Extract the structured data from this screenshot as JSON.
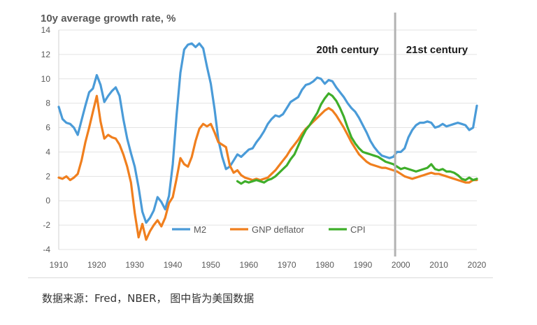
{
  "chart_data": {
    "type": "line",
    "title": "10y average growth rate, %",
    "xlabel": "",
    "ylabel": "",
    "xlim": [
      1910,
      2020
    ],
    "ylim": [
      -4,
      14
    ],
    "x_ticks": [
      1910,
      1920,
      1930,
      1940,
      1950,
      1960,
      1970,
      1980,
      1990,
      2000,
      2010,
      2020
    ],
    "y_ticks": [
      -4,
      -2,
      0,
      2,
      4,
      6,
      8,
      10,
      12,
      14
    ],
    "grid": "horizontal",
    "legend_position": "bottom-center",
    "annotations": [
      {
        "text": "20th century",
        "x": 1986
      },
      {
        "text": "21st century",
        "x": 2009.5
      }
    ],
    "divider_x": 1998.5,
    "series": [
      {
        "name": "M2",
        "color": "#4a9bd8",
        "points": [
          [
            1910,
            7.7
          ],
          [
            1911,
            6.7
          ],
          [
            1912,
            6.4
          ],
          [
            1913,
            6.3
          ],
          [
            1914,
            6.0
          ],
          [
            1915,
            5.4
          ],
          [
            1916,
            6.6
          ],
          [
            1917,
            7.8
          ],
          [
            1918,
            8.9
          ],
          [
            1919,
            9.2
          ],
          [
            1920,
            10.3
          ],
          [
            1921,
            9.5
          ],
          [
            1922,
            8.1
          ],
          [
            1923,
            8.6
          ],
          [
            1924,
            9.0
          ],
          [
            1925,
            9.3
          ],
          [
            1926,
            8.6
          ],
          [
            1927,
            6.7
          ],
          [
            1928,
            5.1
          ],
          [
            1929,
            3.9
          ],
          [
            1930,
            2.8
          ],
          [
            1931,
            1.1
          ],
          [
            1932,
            -0.9
          ],
          [
            1933,
            -1.8
          ],
          [
            1934,
            -1.4
          ],
          [
            1935,
            -0.8
          ],
          [
            1936,
            0.3
          ],
          [
            1937,
            -0.1
          ],
          [
            1938,
            -0.7
          ],
          [
            1939,
            0.4
          ],
          [
            1940,
            3.0
          ],
          [
            1941,
            7.0
          ],
          [
            1942,
            10.5
          ],
          [
            1943,
            12.4
          ],
          [
            1944,
            12.8
          ],
          [
            1945,
            12.9
          ],
          [
            1946,
            12.6
          ],
          [
            1947,
            12.9
          ],
          [
            1948,
            12.5
          ],
          [
            1949,
            11.0
          ],
          [
            1950,
            9.6
          ],
          [
            1951,
            7.5
          ],
          [
            1952,
            5.0
          ],
          [
            1953,
            3.6
          ],
          [
            1954,
            2.6
          ],
          [
            1955,
            2.8
          ],
          [
            1956,
            3.3
          ],
          [
            1957,
            3.8
          ],
          [
            1958,
            3.6
          ],
          [
            1959,
            3.9
          ],
          [
            1960,
            4.2
          ],
          [
            1961,
            4.3
          ],
          [
            1962,
            4.8
          ],
          [
            1963,
            5.2
          ],
          [
            1964,
            5.7
          ],
          [
            1965,
            6.3
          ],
          [
            1966,
            6.7
          ],
          [
            1967,
            7.0
          ],
          [
            1968,
            6.9
          ],
          [
            1969,
            7.1
          ],
          [
            1970,
            7.6
          ],
          [
            1971,
            8.1
          ],
          [
            1972,
            8.3
          ],
          [
            1973,
            8.5
          ],
          [
            1974,
            9.1
          ],
          [
            1975,
            9.5
          ],
          [
            1976,
            9.6
          ],
          [
            1977,
            9.8
          ],
          [
            1978,
            10.1
          ],
          [
            1979,
            10.0
          ],
          [
            1980,
            9.6
          ],
          [
            1981,
            9.9
          ],
          [
            1982,
            9.8
          ],
          [
            1983,
            9.3
          ],
          [
            1984,
            8.9
          ],
          [
            1985,
            8.5
          ],
          [
            1986,
            8.0
          ],
          [
            1987,
            7.6
          ],
          [
            1988,
            7.3
          ],
          [
            1989,
            6.8
          ],
          [
            1990,
            6.2
          ],
          [
            1991,
            5.6
          ],
          [
            1992,
            4.9
          ],
          [
            1993,
            4.4
          ],
          [
            1994,
            4.0
          ],
          [
            1995,
            3.7
          ],
          [
            1996,
            3.6
          ],
          [
            1997,
            3.5
          ],
          [
            1998,
            3.6
          ],
          [
            1999,
            4.0
          ],
          [
            2000,
            4.0
          ],
          [
            2001,
            4.3
          ],
          [
            2002,
            5.2
          ],
          [
            2003,
            5.8
          ],
          [
            2004,
            6.2
          ],
          [
            2005,
            6.4
          ],
          [
            2006,
            6.4
          ],
          [
            2007,
            6.5
          ],
          [
            2008,
            6.4
          ],
          [
            2009,
            6.0
          ],
          [
            2010,
            6.1
          ],
          [
            2011,
            6.3
          ],
          [
            2012,
            6.1
          ],
          [
            2013,
            6.2
          ],
          [
            2014,
            6.3
          ],
          [
            2015,
            6.4
          ],
          [
            2016,
            6.3
          ],
          [
            2017,
            6.2
          ],
          [
            2018,
            5.8
          ],
          [
            2019,
            6.0
          ],
          [
            2020,
            7.8
          ]
        ]
      },
      {
        "name": "GNP deflator",
        "color": "#f07f1e",
        "points": [
          [
            1910,
            1.9
          ],
          [
            1911,
            1.8
          ],
          [
            1912,
            2.0
          ],
          [
            1913,
            1.7
          ],
          [
            1914,
            1.9
          ],
          [
            1915,
            2.2
          ],
          [
            1916,
            3.3
          ],
          [
            1917,
            4.8
          ],
          [
            1918,
            6.0
          ],
          [
            1919,
            7.3
          ],
          [
            1920,
            8.6
          ],
          [
            1921,
            6.5
          ],
          [
            1922,
            5.1
          ],
          [
            1923,
            5.4
          ],
          [
            1924,
            5.2
          ],
          [
            1925,
            5.1
          ],
          [
            1926,
            4.6
          ],
          [
            1927,
            3.8
          ],
          [
            1928,
            2.8
          ],
          [
            1929,
            1.5
          ],
          [
            1930,
            -1.0
          ],
          [
            1931,
            -3.0
          ],
          [
            1932,
            -1.9
          ],
          [
            1933,
            -3.2
          ],
          [
            1934,
            -2.5
          ],
          [
            1935,
            -2.0
          ],
          [
            1936,
            -1.6
          ],
          [
            1937,
            -2.1
          ],
          [
            1938,
            -1.4
          ],
          [
            1939,
            -0.2
          ],
          [
            1940,
            0.3
          ],
          [
            1941,
            1.8
          ],
          [
            1942,
            3.5
          ],
          [
            1943,
            3.0
          ],
          [
            1944,
            2.8
          ],
          [
            1945,
            3.6
          ],
          [
            1946,
            4.9
          ],
          [
            1947,
            5.9
          ],
          [
            1948,
            6.3
          ],
          [
            1949,
            6.1
          ],
          [
            1950,
            6.3
          ],
          [
            1951,
            5.6
          ],
          [
            1952,
            4.8
          ],
          [
            1953,
            4.6
          ],
          [
            1954,
            4.4
          ],
          [
            1955,
            2.9
          ],
          [
            1956,
            2.3
          ],
          [
            1957,
            2.5
          ],
          [
            1958,
            2.1
          ],
          [
            1959,
            1.9
          ],
          [
            1960,
            1.8
          ],
          [
            1961,
            1.7
          ],
          [
            1962,
            1.8
          ],
          [
            1963,
            1.7
          ],
          [
            1964,
            1.8
          ],
          [
            1965,
            1.9
          ],
          [
            1966,
            2.2
          ],
          [
            1967,
            2.5
          ],
          [
            1968,
            2.9
          ],
          [
            1969,
            3.3
          ],
          [
            1970,
            3.7
          ],
          [
            1971,
            4.2
          ],
          [
            1972,
            4.6
          ],
          [
            1973,
            5.0
          ],
          [
            1974,
            5.5
          ],
          [
            1975,
            5.9
          ],
          [
            1976,
            6.2
          ],
          [
            1977,
            6.5
          ],
          [
            1978,
            6.8
          ],
          [
            1979,
            7.1
          ],
          [
            1980,
            7.4
          ],
          [
            1981,
            7.6
          ],
          [
            1982,
            7.4
          ],
          [
            1983,
            7.0
          ],
          [
            1984,
            6.5
          ],
          [
            1985,
            6.0
          ],
          [
            1986,
            5.4
          ],
          [
            1987,
            4.8
          ],
          [
            1988,
            4.3
          ],
          [
            1989,
            3.8
          ],
          [
            1990,
            3.5
          ],
          [
            1991,
            3.2
          ],
          [
            1992,
            3.0
          ],
          [
            1993,
            2.9
          ],
          [
            1994,
            2.8
          ],
          [
            1995,
            2.7
          ],
          [
            1996,
            2.7
          ],
          [
            1997,
            2.6
          ],
          [
            1998,
            2.5
          ],
          [
            1999,
            2.4
          ],
          [
            2000,
            2.2
          ],
          [
            2001,
            2.0
          ],
          [
            2002,
            1.9
          ],
          [
            2003,
            1.8
          ],
          [
            2004,
            1.9
          ],
          [
            2005,
            2.0
          ],
          [
            2006,
            2.1
          ],
          [
            2007,
            2.2
          ],
          [
            2008,
            2.3
          ],
          [
            2009,
            2.2
          ],
          [
            2010,
            2.2
          ],
          [
            2011,
            2.1
          ],
          [
            2012,
            2.0
          ],
          [
            2013,
            1.9
          ],
          [
            2014,
            1.8
          ],
          [
            2015,
            1.7
          ],
          [
            2016,
            1.6
          ],
          [
            2017,
            1.5
          ],
          [
            2018,
            1.5
          ],
          [
            2019,
            1.7
          ],
          [
            2020,
            1.7
          ]
        ]
      },
      {
        "name": "CPI",
        "color": "#3fae2a",
        "points": [
          [
            1957,
            1.6
          ],
          [
            1958,
            1.4
          ],
          [
            1959,
            1.6
          ],
          [
            1960,
            1.5
          ],
          [
            1961,
            1.6
          ],
          [
            1962,
            1.7
          ],
          [
            1963,
            1.6
          ],
          [
            1964,
            1.5
          ],
          [
            1965,
            1.7
          ],
          [
            1966,
            1.8
          ],
          [
            1967,
            2.0
          ],
          [
            1968,
            2.3
          ],
          [
            1969,
            2.6
          ],
          [
            1970,
            2.9
          ],
          [
            1971,
            3.4
          ],
          [
            1972,
            3.8
          ],
          [
            1973,
            4.5
          ],
          [
            1974,
            5.2
          ],
          [
            1975,
            5.8
          ],
          [
            1976,
            6.2
          ],
          [
            1977,
            6.7
          ],
          [
            1978,
            7.2
          ],
          [
            1979,
            7.9
          ],
          [
            1980,
            8.4
          ],
          [
            1981,
            8.8
          ],
          [
            1982,
            8.6
          ],
          [
            1983,
            8.2
          ],
          [
            1984,
            7.6
          ],
          [
            1985,
            6.9
          ],
          [
            1986,
            6.0
          ],
          [
            1987,
            5.2
          ],
          [
            1988,
            4.7
          ],
          [
            1989,
            4.3
          ],
          [
            1990,
            4.0
          ],
          [
            1991,
            3.9
          ],
          [
            1992,
            3.8
          ],
          [
            1993,
            3.7
          ],
          [
            1994,
            3.6
          ],
          [
            1995,
            3.4
          ],
          [
            1996,
            3.2
          ],
          [
            1997,
            3.1
          ],
          [
            1998,
            3.0
          ],
          [
            1999,
            2.8
          ],
          [
            2000,
            2.6
          ],
          [
            2001,
            2.7
          ],
          [
            2002,
            2.6
          ],
          [
            2003,
            2.5
          ],
          [
            2004,
            2.4
          ],
          [
            2005,
            2.5
          ],
          [
            2006,
            2.6
          ],
          [
            2007,
            2.7
          ],
          [
            2008,
            3.0
          ],
          [
            2009,
            2.6
          ],
          [
            2010,
            2.5
          ],
          [
            2011,
            2.6
          ],
          [
            2012,
            2.4
          ],
          [
            2013,
            2.4
          ],
          [
            2014,
            2.3
          ],
          [
            2015,
            2.1
          ],
          [
            2016,
            1.8
          ],
          [
            2017,
            1.7
          ],
          [
            2018,
            1.9
          ],
          [
            2019,
            1.7
          ],
          [
            2020,
            1.8
          ]
        ]
      }
    ]
  },
  "footer": {
    "source": "数据来源：Fred，NBER， 图中皆为美国数据"
  }
}
